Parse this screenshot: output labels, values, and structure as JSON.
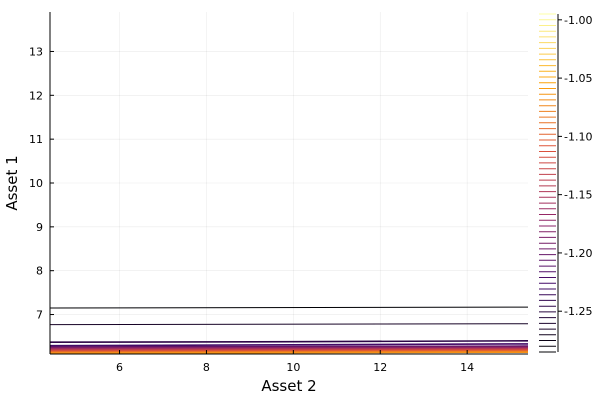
{
  "chart_data": {
    "type": "contour",
    "xlabel": "Asset 2",
    "ylabel": "Asset 1",
    "xlim": [
      4.4,
      15.4
    ],
    "ylim": [
      6.1,
      13.9
    ],
    "x_ticks": [
      6,
      8,
      10,
      12,
      14
    ],
    "y_ticks": [
      7,
      8,
      9,
      10,
      11,
      12,
      13
    ],
    "grid": true,
    "contour_lines": [
      {
        "level_rank": 0,
        "points": [
          [
            4.4,
            7.15
          ],
          [
            15.4,
            7.17
          ]
        ]
      },
      {
        "level_rank": 1,
        "points": [
          [
            4.4,
            6.77
          ],
          [
            15.4,
            6.79
          ]
        ]
      },
      {
        "level_rank": 2,
        "points": [
          [
            4.4,
            6.37
          ],
          [
            10,
            6.38
          ],
          [
            15.4,
            6.4
          ]
        ]
      },
      {
        "level_rank": 3,
        "points": [
          [
            4.4,
            6.29
          ],
          [
            10,
            6.31
          ],
          [
            15.4,
            6.33
          ]
        ]
      },
      {
        "level_rank": 4,
        "points": [
          [
            4.4,
            6.26
          ],
          [
            15.4,
            6.28
          ]
        ]
      },
      {
        "level_rank": 5,
        "points": [
          [
            4.4,
            6.24
          ],
          [
            15.4,
            6.26
          ]
        ]
      },
      {
        "level_rank": 6,
        "points": [
          [
            4.4,
            6.22
          ],
          [
            15.4,
            6.24
          ]
        ]
      },
      {
        "level_rank": 7,
        "points": [
          [
            4.4,
            6.2
          ],
          [
            15.4,
            6.22
          ]
        ]
      },
      {
        "level_rank": 8,
        "points": [
          [
            4.4,
            6.18
          ],
          [
            15.4,
            6.2
          ]
        ]
      },
      {
        "level_rank": 9,
        "points": [
          [
            4.4,
            6.16
          ],
          [
            15.4,
            6.18
          ]
        ]
      },
      {
        "level_rank": 10,
        "points": [
          [
            4.4,
            6.14
          ],
          [
            15.4,
            6.16
          ]
        ]
      },
      {
        "level_rank": 11,
        "points": [
          [
            4.4,
            6.12
          ],
          [
            15.4,
            6.14
          ]
        ]
      }
    ],
    "colorbar": {
      "range": [
        -1.285,
        -0.995
      ],
      "ticks": [
        "-1.00",
        "-1.05",
        "-1.10",
        "-1.15",
        "-1.20",
        "-1.25"
      ],
      "tick_values": [
        -1.0,
        -1.05,
        -1.1,
        -1.15,
        -1.2,
        -1.25
      ],
      "levels": 60,
      "colormap": [
        "#000004",
        "#420a68",
        "#932667",
        "#dd513a",
        "#fca50a",
        "#fcffa4"
      ]
    }
  }
}
